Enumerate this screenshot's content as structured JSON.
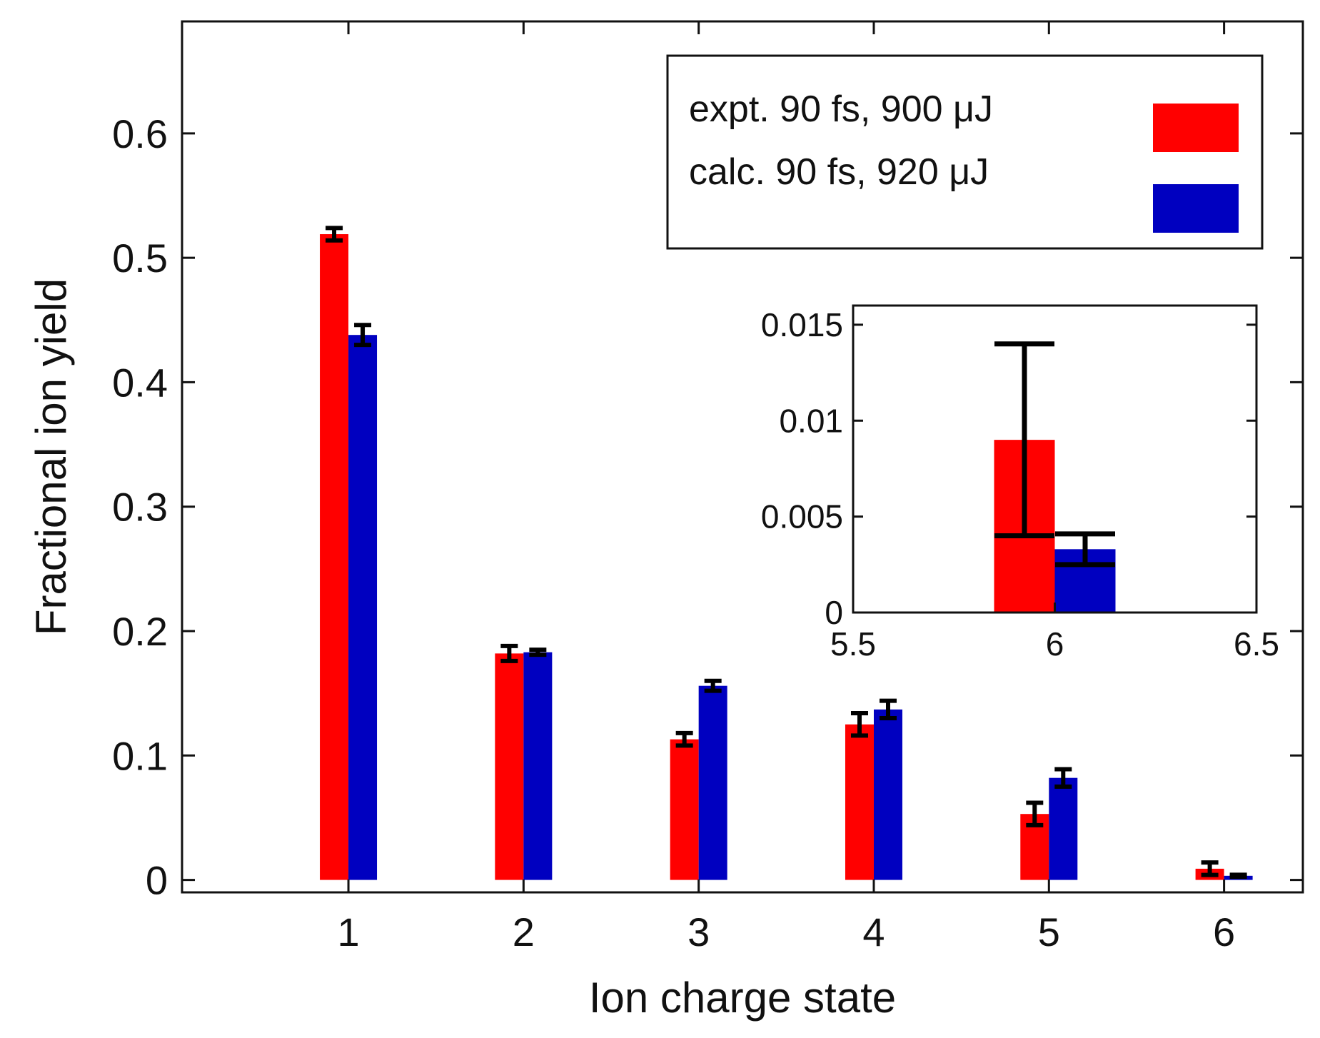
{
  "chart_data": {
    "type": "bar",
    "title": "",
    "xlabel": "Ion charge state",
    "ylabel": "Fractional ion yield",
    "categories": [
      "1",
      "2",
      "3",
      "4",
      "5",
      "6"
    ],
    "x": [
      1,
      2,
      3,
      4,
      5,
      6
    ],
    "xlim": [
      0.05,
      6.45
    ],
    "ylim": [
      -0.01,
      0.69
    ],
    "yticks": [
      0,
      0.1,
      0.2,
      0.3,
      0.4,
      0.5,
      0.6
    ],
    "ytick_labels": [
      "0",
      "0.1",
      "0.2",
      "0.3",
      "0.4",
      "0.5",
      "0.6"
    ],
    "grid": false,
    "legend_position": "top-right",
    "series": [
      {
        "name": "expt. 90 fs, 900 μJ",
        "color": "#ff0000",
        "values": [
          0.519,
          0.182,
          0.113,
          0.125,
          0.053,
          0.009
        ],
        "errors": [
          0.005,
          0.006,
          0.005,
          0.009,
          0.009,
          0.005
        ]
      },
      {
        "name": "calc. 90 fs, 920 μJ",
        "color": "#0000c0",
        "values": [
          0.438,
          0.183,
          0.156,
          0.137,
          0.082,
          0.0033
        ],
        "errors": [
          0.008,
          0.002,
          0.004,
          0.007,
          0.007,
          0.0008
        ]
      }
    ],
    "inset": {
      "xlim": [
        5.5,
        6.5
      ],
      "ylim": [
        0,
        0.016
      ],
      "xticks": [
        5.5,
        6,
        6.5
      ],
      "xtick_labels": [
        "5.5",
        "6",
        "6.5"
      ],
      "yticks": [
        0,
        0.005,
        0.01,
        0.015
      ],
      "ytick_labels": [
        "0",
        "0.005",
        "0.01",
        "0.015"
      ],
      "series": [
        {
          "name": "expt.",
          "color": "#ff0000",
          "x": 6,
          "value": 0.009,
          "error": 0.005
        },
        {
          "name": "calc.",
          "color": "#0000c0",
          "x": 6,
          "value": 0.0033,
          "error": 0.0008
        }
      ]
    }
  }
}
